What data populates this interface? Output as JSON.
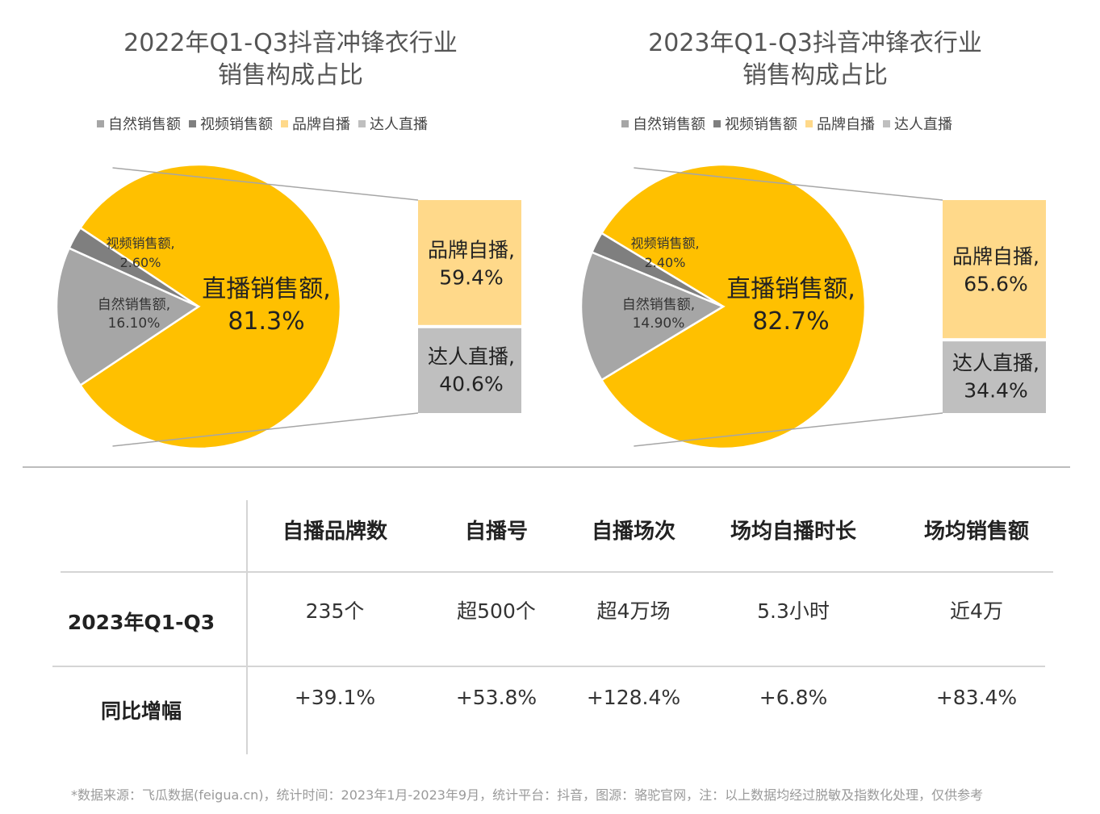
{
  "colors": {
    "natural": "#a6a6a6",
    "video": "#7f7f7f",
    "live": "#ffc000",
    "brand": "#ffd98a",
    "talent": "#bfbfbf"
  },
  "chart_data": [
    {
      "type": "pie",
      "title_lines": [
        "2022年Q1-Q3抖音冲锋衣行业",
        "销售构成占比"
      ],
      "legend": [
        "自然销售额",
        "视频销售额",
        "品牌自播",
        "达人直播"
      ],
      "slices": [
        {
          "name": "直播销售额",
          "value": 81.3,
          "label": "直播销售额,",
          "value_label": "81.3%"
        },
        {
          "name": "自然销售额",
          "value": 16.1,
          "label": "自然销售额,",
          "value_label": "16.10%"
        },
        {
          "name": "视频销售额",
          "value": 2.6,
          "label": "视频销售额,",
          "value_label": "2.60%"
        }
      ],
      "breakdown": [
        {
          "name": "品牌自播",
          "value": 59.4,
          "label": "品牌自播,",
          "value_label": "59.4%"
        },
        {
          "name": "达人直播",
          "value": 40.6,
          "label": "达人直播,",
          "value_label": "40.6%"
        }
      ]
    },
    {
      "type": "pie",
      "title_lines": [
        "2023年Q1-Q3抖音冲锋衣行业",
        "销售构成占比"
      ],
      "legend": [
        "自然销售额",
        "视频销售额",
        "品牌自播",
        "达人直播"
      ],
      "slices": [
        {
          "name": "直播销售额",
          "value": 82.7,
          "label": "直播销售额,",
          "value_label": "82.7%"
        },
        {
          "name": "自然销售额",
          "value": 14.9,
          "label": "自然销售额,",
          "value_label": "14.90%"
        },
        {
          "name": "视频销售额",
          "value": 2.4,
          "label": "视频销售额,",
          "value_label": "2.40%"
        }
      ],
      "breakdown": [
        {
          "name": "品牌自播",
          "value": 65.6,
          "label": "品牌自播,",
          "value_label": "65.6%"
        },
        {
          "name": "达人直播",
          "value": 34.4,
          "label": "达人直播,",
          "value_label": "34.4%"
        }
      ]
    }
  ],
  "table": {
    "headers": [
      "自播品牌数",
      "自播号",
      "自播场次",
      "场均自播时长",
      "场均销售额"
    ],
    "rows": [
      {
        "label": "2023年Q1-Q3",
        "values": [
          "235个",
          "超500个",
          "超4万场",
          "5.3小时",
          "近4万"
        ]
      },
      {
        "label": "同比增幅",
        "values": [
          "+39.1%",
          "+53.8%",
          "+128.4%",
          "+6.8%",
          "+83.4%"
        ]
      }
    ]
  },
  "footnote": "*数据来源：飞瓜数据(feigua.cn)，统计时间：2023年1月-2023年9月，统计平台：抖音，图源：骆驼官网，注：以上数据均经过脱敏及指数化处理，仅供参考"
}
